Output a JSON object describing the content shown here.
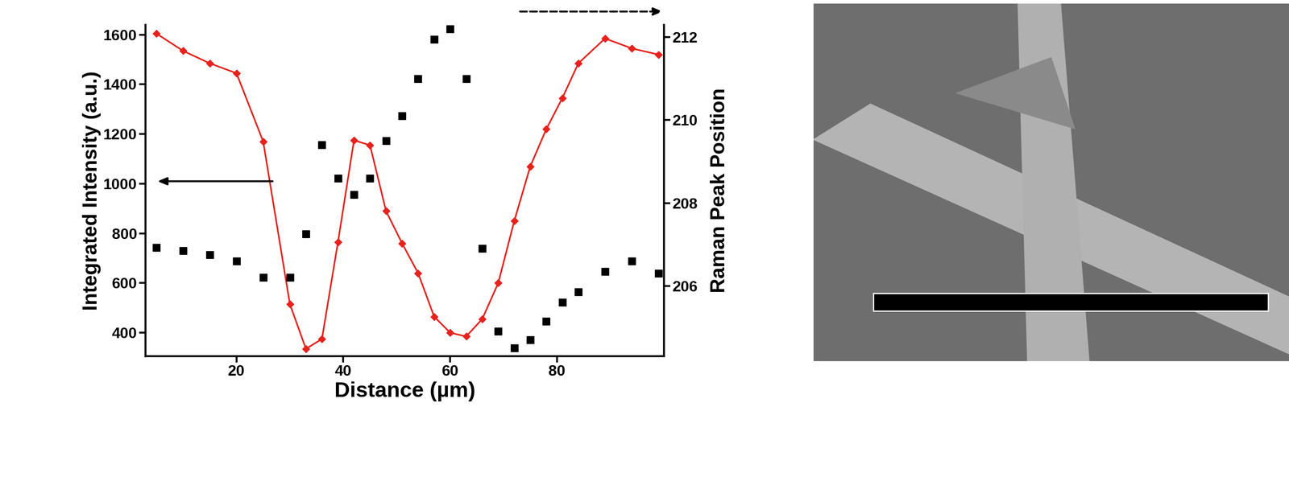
{
  "chart_data": {
    "type": "line",
    "x_label": "Distance (µm)",
    "y_label": "Integrated Intensity (a.u.)",
    "y2_label": "Raman Peak Position",
    "x": [
      5,
      10,
      15,
      20,
      25,
      30,
      33,
      36,
      39,
      42,
      45,
      48,
      51,
      54,
      57,
      60,
      63,
      66,
      69,
      72,
      75,
      78,
      81,
      84,
      89,
      94,
      99
    ],
    "xlim": [
      3,
      100
    ],
    "xticks": [
      20,
      40,
      60,
      80
    ],
    "ylim": [
      305,
      1640
    ],
    "yticks": [
      400,
      600,
      800,
      1000,
      1200,
      1400,
      1600
    ],
    "y2lim": [
      204.3,
      212.3
    ],
    "y2ticks": [
      206,
      208,
      210,
      212
    ],
    "series": [
      {
        "name": "Integrated Intensity",
        "type": "line",
        "color": "#e8211c",
        "marker": "diamond",
        "line_style": "solid",
        "axis": "y",
        "values": [
          1605,
          1535,
          1485,
          1445,
          1170,
          515,
          335,
          375,
          765,
          1175,
          1155,
          890,
          760,
          640,
          465,
          400,
          385,
          455,
          600,
          850,
          1070,
          1220,
          1345,
          1485,
          1585,
          1545,
          1520
        ]
      },
      {
        "name": "Raman Peak Position",
        "type": "scatter",
        "color": "#000000",
        "marker": "square",
        "axis": "y2",
        "values": [
          206.93,
          206.85,
          206.75,
          206.6,
          206.2,
          206.2,
          207.25,
          209.4,
          208.6,
          208.2,
          208.6,
          209.5,
          210.1,
          211.0,
          211.95,
          212.2,
          211.0,
          206.9,
          204.9,
          204.5,
          204.7,
          205.15,
          205.6,
          205.85,
          206.35,
          206.6,
          206.3
        ]
      }
    ]
  }
}
